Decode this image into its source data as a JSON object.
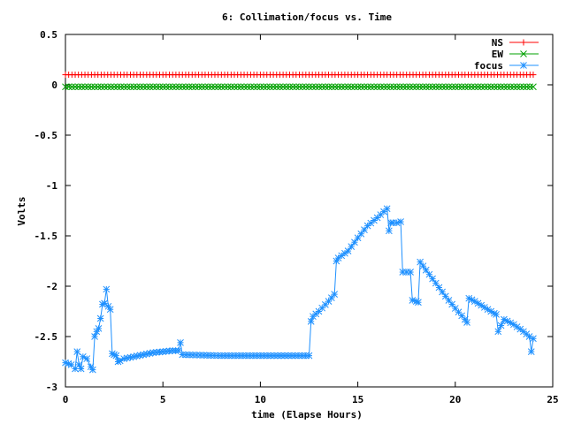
{
  "chart_data": {
    "type": "line",
    "title": "6: Collimation/focus vs. Time",
    "xlabel": "time (Elapse Hours)",
    "ylabel": "Volts",
    "xlim": [
      0,
      25
    ],
    "ylim": [
      -3,
      0.5
    ],
    "xticks": [
      0,
      5,
      10,
      15,
      20,
      25
    ],
    "xtick_labels": [
      "0",
      "5",
      "10",
      "15",
      "20",
      "25"
    ],
    "yticks": [
      0.5,
      0,
      -0.5,
      -1,
      -1.5,
      -2,
      -2.5,
      -3
    ],
    "ytick_labels": [
      "0.5",
      "0",
      "-0.5",
      "-1",
      "-1.5",
      "-2",
      "-2.5",
      "-3"
    ],
    "grid": false,
    "legend_position": "top-right",
    "series": [
      {
        "name": "NS",
        "color": "#ff0000",
        "marker": "plus",
        "x": [
          0,
          1,
          2,
          3,
          4,
          5,
          6,
          7,
          8,
          9,
          10,
          11,
          12,
          13,
          14,
          15,
          16,
          17,
          18,
          19,
          20,
          21,
          22,
          23,
          24
        ],
        "y": [
          0.1,
          0.1,
          0.1,
          0.1,
          0.1,
          0.1,
          0.1,
          0.1,
          0.1,
          0.1,
          0.1,
          0.1,
          0.1,
          0.1,
          0.1,
          0.1,
          0.1,
          0.1,
          0.1,
          0.1,
          0.1,
          0.1,
          0.1,
          0.1,
          0.1
        ]
      },
      {
        "name": "EW",
        "color": "#00a000",
        "marker": "cross",
        "x": [
          0,
          1,
          2,
          3,
          4,
          5,
          6,
          7,
          8,
          9,
          10,
          11,
          12,
          13,
          14,
          15,
          16,
          17,
          18,
          19,
          20,
          21,
          22,
          23,
          24
        ],
        "y": [
          -0.02,
          -0.02,
          -0.02,
          -0.02,
          -0.02,
          -0.02,
          -0.02,
          -0.02,
          -0.02,
          -0.02,
          -0.02,
          -0.02,
          -0.02,
          -0.02,
          -0.02,
          -0.02,
          -0.02,
          -0.02,
          -0.02,
          -0.02,
          -0.02,
          -0.02,
          -0.02,
          -0.02,
          -0.02
        ]
      },
      {
        "name": "focus",
        "color": "#1e90ff",
        "marker": "star",
        "x": [
          0,
          0.3,
          0.5,
          0.6,
          0.7,
          0.8,
          0.9,
          1.1,
          1.3,
          1.4,
          1.5,
          1.6,
          1.7,
          1.8,
          1.9,
          2.0,
          2.1,
          2.2,
          2.3,
          2.4,
          2.5,
          2.6,
          2.7,
          2.8,
          3.0,
          3.5,
          4.0,
          4.5,
          5.0,
          5.5,
          5.8,
          5.9,
          6.0,
          8.0,
          10.0,
          12.5,
          12.6,
          12.7,
          13.0,
          13.5,
          13.8,
          13.9,
          14.0,
          14.5,
          15.0,
          15.5,
          16.0,
          16.5,
          16.6,
          16.7,
          16.8,
          17.0,
          17.2,
          17.3,
          17.5,
          17.7,
          17.8,
          18.0,
          18.1,
          18.2,
          18.5,
          19.0,
          19.5,
          20.0,
          20.5,
          20.6,
          20.7,
          21.0,
          21.5,
          22.0,
          22.1,
          22.2,
          22.5,
          23.0,
          23.5,
          23.8,
          23.9,
          24.0
        ],
        "y": [
          -2.76,
          -2.78,
          -2.82,
          -2.65,
          -2.78,
          -2.82,
          -2.7,
          -2.72,
          -2.8,
          -2.83,
          -2.5,
          -2.45,
          -2.42,
          -2.32,
          -2.18,
          -2.17,
          -2.03,
          -2.2,
          -2.23,
          -2.67,
          -2.68,
          -2.69,
          -2.75,
          -2.74,
          -2.72,
          -2.7,
          -2.68,
          -2.66,
          -2.65,
          -2.64,
          -2.64,
          -2.56,
          -2.68,
          -2.69,
          -2.69,
          -2.69,
          -2.35,
          -2.3,
          -2.25,
          -2.15,
          -2.08,
          -1.75,
          -1.72,
          -1.65,
          -1.52,
          -1.4,
          -1.32,
          -1.23,
          -1.45,
          -1.37,
          -1.37,
          -1.37,
          -1.36,
          -1.86,
          -1.86,
          -1.86,
          -2.14,
          -2.15,
          -2.16,
          -1.76,
          -1.84,
          -1.97,
          -2.1,
          -2.22,
          -2.33,
          -2.36,
          -2.12,
          -2.15,
          -2.21,
          -2.27,
          -2.28,
          -2.45,
          -2.33,
          -2.38,
          -2.45,
          -2.5,
          -2.65,
          -2.52
        ]
      }
    ]
  }
}
